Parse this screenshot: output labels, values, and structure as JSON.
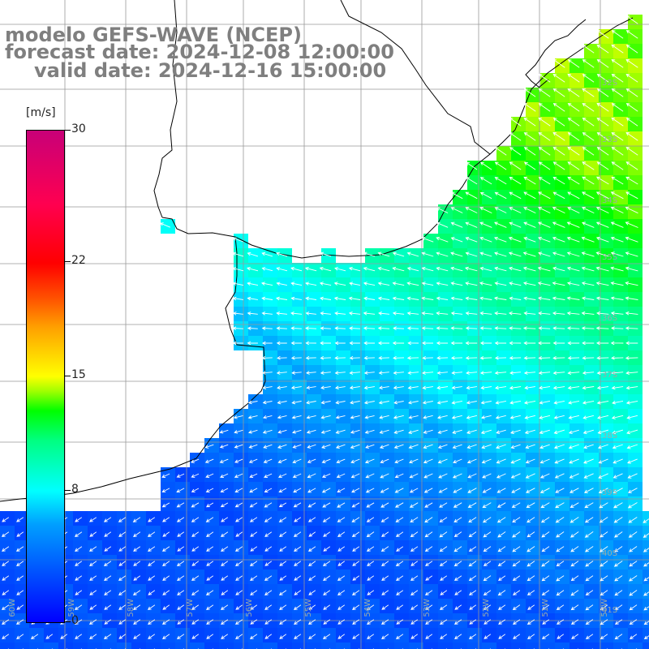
{
  "header": {
    "model_line": "modelo GEFS-WAVE (NCEP)",
    "forecast_line": "forecast date: 2024-12-08 12:00:00",
    "valid_line": "valid date: 2024-12-16 15:00:00"
  },
  "colorbar": {
    "unit": "[m/s]",
    "ticks": [
      {
        "value": 30,
        "label": "30"
      },
      {
        "value": 22,
        "label": "22"
      },
      {
        "value": 15,
        "label": "15"
      },
      {
        "value": 8,
        "label": "8"
      },
      {
        "value": 0,
        "label": "0"
      }
    ],
    "range": [
      0,
      30
    ]
  },
  "map": {
    "lat_labels": [
      "32S",
      "33S",
      "34S",
      "35S",
      "36S",
      "37S",
      "38S",
      "39S",
      "40S",
      "41S"
    ],
    "lon_labels": [
      "60W",
      "59W",
      "58W",
      "57W",
      "56W",
      "55W",
      "54W",
      "53W",
      "52W",
      "51W",
      "50W"
    ],
    "field": "wind speed with wind direction arrows",
    "wind_direction_north": "from the southeast (arrows point to the northwest)",
    "wind_direction_south": "from the northeast (arrows point to the southwest)",
    "colors": {
      "land": "#ffffff",
      "grid": "#999999",
      "coast": "#000000",
      "arrows": "#ffffff"
    }
  }
}
